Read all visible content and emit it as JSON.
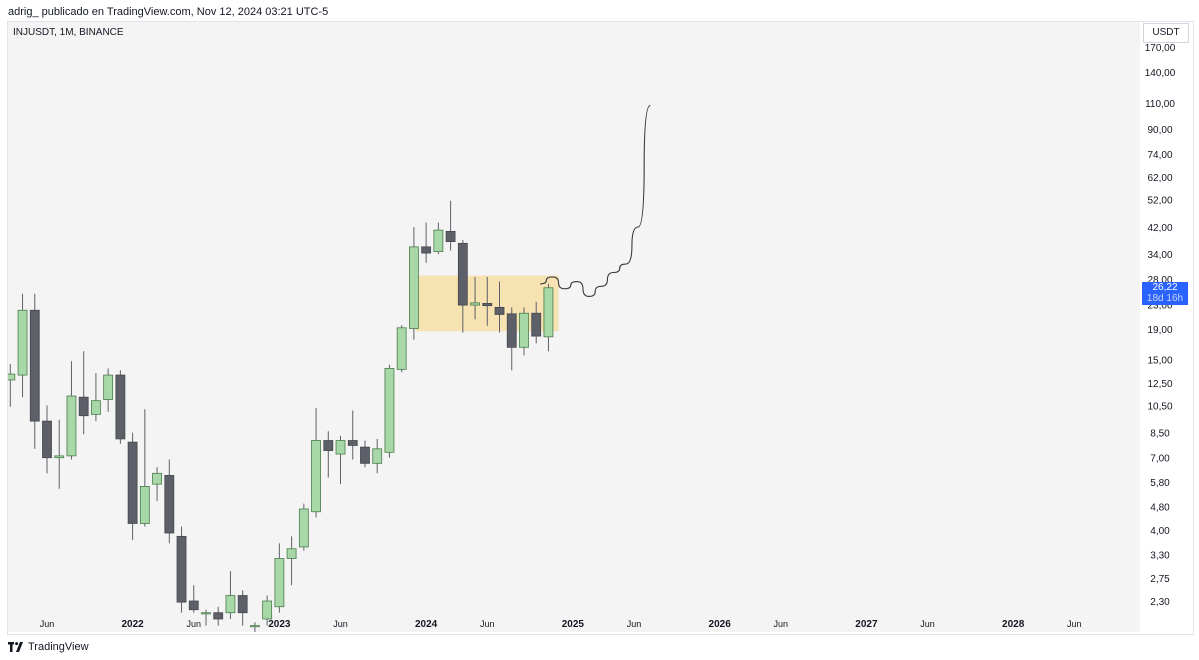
{
  "header": {
    "attribution": "adrig_ publicado en TradingView.com, Nov 12, 2024 03:21 UTC-5"
  },
  "symbol_label": "INJUSDT, 1M, BINANCE",
  "currency": "USDT",
  "last_price": {
    "value": "26,22",
    "countdown": "18d 16h"
  },
  "footer": {
    "brand": "TradingView"
  },
  "colors": {
    "up": "#a8d8a8",
    "down": "#5d6068",
    "zone": "#f7dea5",
    "badge": "#2962ff",
    "background": "#f4f4f4"
  },
  "chart_data": {
    "type": "candlestick",
    "scale": "log",
    "ylim": [
      2.15,
      190
    ],
    "y_ticks": [
      {
        "v": 170,
        "label": "170,00"
      },
      {
        "v": 140,
        "label": "140,00"
      },
      {
        "v": 110,
        "label": "110,00"
      },
      {
        "v": 90,
        "label": "90,00"
      },
      {
        "v": 74,
        "label": "74,00"
      },
      {
        "v": 62,
        "label": "62,00"
      },
      {
        "v": 52,
        "label": "52,00"
      },
      {
        "v": 42,
        "label": "42,00"
      },
      {
        "v": 34,
        "label": "34,00"
      },
      {
        "v": 28,
        "label": "28,00"
      },
      {
        "v": 23,
        "label": "23,00"
      },
      {
        "v": 19,
        "label": "19,00"
      },
      {
        "v": 15,
        "label": "15,00"
      },
      {
        "v": 12.5,
        "label": "12,50"
      },
      {
        "v": 10.5,
        "label": "10,50"
      },
      {
        "v": 8.5,
        "label": "8,50"
      },
      {
        "v": 7,
        "label": "7,00"
      },
      {
        "v": 5.8,
        "label": "5,80"
      },
      {
        "v": 4.8,
        "label": "4,80"
      },
      {
        "v": 4,
        "label": "4,00"
      },
      {
        "v": 3.3,
        "label": "3,30"
      },
      {
        "v": 2.75,
        "label": "2,75"
      },
      {
        "v": 2.3,
        "label": "2,30"
      }
    ],
    "x_ticks": [
      {
        "date": "2021-06",
        "label": "Jun",
        "bold": false
      },
      {
        "date": "2022-01",
        "label": "2022",
        "bold": true
      },
      {
        "date": "2022-06",
        "label": "Jun",
        "bold": false
      },
      {
        "date": "2023-01",
        "label": "2023",
        "bold": true
      },
      {
        "date": "2023-06",
        "label": "Jun",
        "bold": false
      },
      {
        "date": "2024-01",
        "label": "2024",
        "bold": true
      },
      {
        "date": "2024-06",
        "label": "Jun",
        "bold": false
      },
      {
        "date": "2025-01",
        "label": "2025",
        "bold": true
      },
      {
        "date": "2025-06",
        "label": "Jun",
        "bold": false
      },
      {
        "date": "2026-01",
        "label": "2026",
        "bold": true
      },
      {
        "date": "2026-06",
        "label": "Jun",
        "bold": false
      },
      {
        "date": "2027-01",
        "label": "2027",
        "bold": true
      },
      {
        "date": "2027-06",
        "label": "Jun",
        "bold": false
      },
      {
        "date": "2028-01",
        "label": "2028",
        "bold": true
      },
      {
        "date": "2028-06",
        "label": "Jun",
        "bold": false
      }
    ],
    "candles": [
      {
        "d": "2021-03",
        "o": 12.8,
        "h": 14.5,
        "l": 10.4,
        "c": 13.4
      },
      {
        "d": "2021-04",
        "o": 13.3,
        "h": 25.0,
        "l": 11.2,
        "c": 22.0
      },
      {
        "d": "2021-05",
        "o": 22.0,
        "h": 25.0,
        "l": 7.5,
        "c": 9.3
      },
      {
        "d": "2021-06",
        "o": 9.3,
        "h": 10.5,
        "l": 6.2,
        "c": 7.0
      },
      {
        "d": "2021-07",
        "o": 7.0,
        "h": 9.4,
        "l": 5.5,
        "c": 7.1
      },
      {
        "d": "2021-08",
        "o": 7.1,
        "h": 14.8,
        "l": 6.9,
        "c": 11.3
      },
      {
        "d": "2021-09",
        "o": 11.2,
        "h": 16.0,
        "l": 8.4,
        "c": 9.7
      },
      {
        "d": "2021-10",
        "o": 9.8,
        "h": 13.5,
        "l": 9.3,
        "c": 10.9
      },
      {
        "d": "2021-11",
        "o": 11.0,
        "h": 14.0,
        "l": 10.0,
        "c": 13.3
      },
      {
        "d": "2021-12",
        "o": 13.3,
        "h": 13.8,
        "l": 7.8,
        "c": 8.1
      },
      {
        "d": "2022-01",
        "o": 7.9,
        "h": 8.5,
        "l": 3.7,
        "c": 4.2
      },
      {
        "d": "2022-02",
        "o": 4.2,
        "h": 10.2,
        "l": 4.1,
        "c": 5.6
      },
      {
        "d": "2022-03",
        "o": 5.7,
        "h": 6.5,
        "l": 5.0,
        "c": 6.2
      },
      {
        "d": "2022-04",
        "o": 6.1,
        "h": 6.9,
        "l": 3.6,
        "c": 3.9
      },
      {
        "d": "2022-05",
        "o": 3.8,
        "h": 4.1,
        "l": 2.1,
        "c": 2.28
      },
      {
        "d": "2022-06",
        "o": 2.3,
        "h": 2.6,
        "l": 2.1,
        "c": 2.15
      },
      {
        "d": "2022-07",
        "o": 2.1,
        "h": 2.15,
        "l": 1.9,
        "c": 2.1
      },
      {
        "d": "2022-08",
        "o": 2.1,
        "h": 2.2,
        "l": 1.9,
        "c": 2.0
      },
      {
        "d": "2022-09",
        "o": 2.1,
        "h": 2.9,
        "l": 2.0,
        "c": 2.4
      },
      {
        "d": "2022-10",
        "o": 2.4,
        "h": 2.5,
        "l": 1.9,
        "c": 2.1
      },
      {
        "d": "2022-11",
        "o": 1.9,
        "h": 1.95,
        "l": 1.8,
        "c": 1.9
      },
      {
        "d": "2022-12",
        "o": 2.0,
        "h": 2.4,
        "l": 1.9,
        "c": 2.3
      },
      {
        "d": "2023-01",
        "o": 2.2,
        "h": 3.6,
        "l": 2.1,
        "c": 3.2
      },
      {
        "d": "2023-02",
        "o": 3.2,
        "h": 3.8,
        "l": 2.6,
        "c": 3.45
      },
      {
        "d": "2023-03",
        "o": 3.5,
        "h": 4.9,
        "l": 3.4,
        "c": 4.7
      },
      {
        "d": "2023-04",
        "o": 4.6,
        "h": 10.3,
        "l": 4.4,
        "c": 8.0
      },
      {
        "d": "2023-05",
        "o": 8.0,
        "h": 8.6,
        "l": 6.0,
        "c": 7.4
      },
      {
        "d": "2023-06",
        "o": 7.2,
        "h": 8.3,
        "l": 5.7,
        "c": 8.0
      },
      {
        "d": "2023-07",
        "o": 8.0,
        "h": 10.1,
        "l": 6.9,
        "c": 7.7
      },
      {
        "d": "2023-08",
        "o": 7.6,
        "h": 8.0,
        "l": 6.5,
        "c": 6.7
      },
      {
        "d": "2023-09",
        "o": 6.7,
        "h": 8.1,
        "l": 6.2,
        "c": 7.5
      },
      {
        "d": "2023-10",
        "o": 7.3,
        "h": 14.4,
        "l": 7.0,
        "c": 14.0
      },
      {
        "d": "2023-11",
        "o": 13.9,
        "h": 19.6,
        "l": 13.6,
        "c": 19.2
      },
      {
        "d": "2023-12",
        "o": 19.1,
        "h": 42.0,
        "l": 17.5,
        "c": 36.0
      },
      {
        "d": "2024-01",
        "o": 36.0,
        "h": 43.5,
        "l": 31.8,
        "c": 34.3
      },
      {
        "d": "2024-02",
        "o": 34.7,
        "h": 43.5,
        "l": 34.0,
        "c": 41.0
      },
      {
        "d": "2024-03",
        "o": 40.6,
        "h": 51.5,
        "l": 35.0,
        "c": 37.5
      },
      {
        "d": "2024-04",
        "o": 37.0,
        "h": 38.0,
        "l": 18.5,
        "c": 22.9
      },
      {
        "d": "2024-05",
        "o": 22.9,
        "h": 28.5,
        "l": 20.5,
        "c": 23.3
      },
      {
        "d": "2024-06",
        "o": 23.2,
        "h": 28.5,
        "l": 19.5,
        "c": 22.8
      },
      {
        "d": "2024-07",
        "o": 22.5,
        "h": 27.5,
        "l": 18.5,
        "c": 21.3
      },
      {
        "d": "2024-08",
        "o": 21.4,
        "h": 22.5,
        "l": 13.8,
        "c": 16.5
      },
      {
        "d": "2024-09",
        "o": 16.5,
        "h": 22.5,
        "l": 15.5,
        "c": 21.5
      },
      {
        "d": "2024-10",
        "o": 21.5,
        "h": 23.5,
        "l": 17.0,
        "c": 18.0
      },
      {
        "d": "2024-11",
        "o": 17.9,
        "h": 27.0,
        "l": 16.0,
        "c": 26.2
      }
    ],
    "zone": {
      "from": "2023-12",
      "to": "2024-12",
      "top": 28.8,
      "bottom": 18.7
    },
    "projection_path": [
      [
        "2024-10",
        27.0
      ],
      [
        "2024-11",
        28.5
      ],
      [
        "2024-12",
        26.0
      ],
      [
        "2025-01",
        27.5
      ],
      [
        "2025-02",
        24.5
      ],
      [
        "2025-03",
        26.5
      ],
      [
        "2025-04",
        29.5
      ],
      [
        "2025-05",
        31.5
      ],
      [
        "2025-06",
        42.0
      ],
      [
        "2025-07",
        108.0
      ]
    ]
  }
}
